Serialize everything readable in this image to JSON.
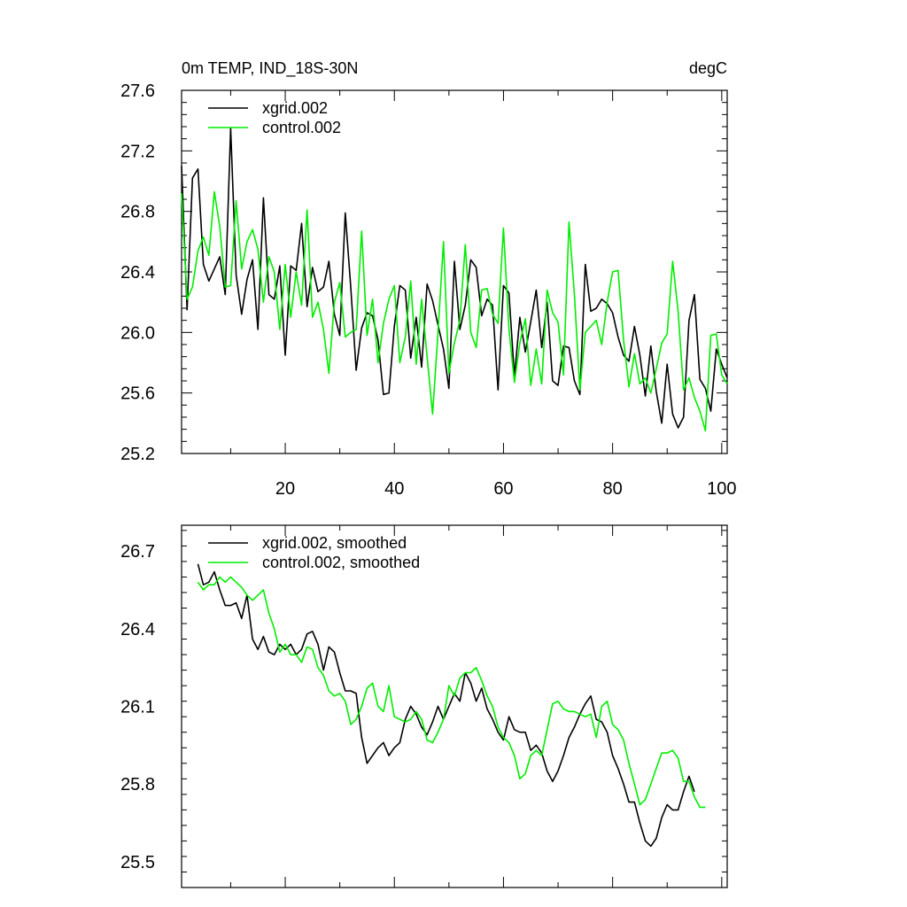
{
  "chart_data": [
    {
      "type": "line",
      "title": "0m TEMP, IND_18S-30N",
      "units": "degC",
      "xlim": [
        1,
        101
      ],
      "ylim": [
        25.2,
        27.6
      ],
      "xticks": [
        20,
        40,
        60,
        80,
        100
      ],
      "yticks": [
        25.2,
        25.6,
        26.0,
        26.4,
        26.8,
        27.2,
        27.6
      ],
      "ytick_labels": [
        "25.2",
        "25.6",
        "26.0",
        "26.4",
        "26.8",
        "27.2",
        "27.6"
      ],
      "legend": "top-left",
      "x_start": 1,
      "series": [
        {
          "name": "xgrid.002",
          "color": "#000000",
          "values": [
            27.1,
            26.15,
            27.02,
            27.08,
            26.45,
            26.34,
            26.42,
            26.5,
            26.25,
            27.35,
            26.38,
            26.12,
            26.35,
            26.48,
            26.02,
            26.89,
            26.25,
            26.22,
            26.44,
            25.85,
            26.44,
            26.41,
            26.72,
            26.17,
            26.43,
            26.27,
            26.3,
            26.47,
            26.12,
            25.98,
            26.79,
            26.3,
            25.75,
            26.03,
            26.13,
            26.11,
            25.95,
            25.59,
            25.6,
            26.04,
            26.31,
            26.28,
            25.83,
            26.1,
            25.77,
            26.32,
            26.21,
            26.05,
            25.89,
            25.63,
            26.47,
            26.02,
            26.18,
            26.48,
            26.43,
            26.11,
            26.22,
            26.18,
            25.62,
            26.31,
            26.26,
            25.71,
            26.1,
            25.87,
            26.07,
            26.28,
            25.9,
            26.2,
            25.68,
            25.65,
            25.91,
            25.9,
            25.68,
            25.59,
            26.45,
            26.14,
            26.16,
            26.22,
            26.19,
            26.13,
            25.97,
            25.85,
            25.81,
            26.04,
            25.85,
            25.58,
            25.91,
            25.61,
            25.4,
            25.79,
            25.46,
            25.37,
            25.44,
            26.08,
            26.25,
            25.69,
            25.63,
            25.48,
            25.89,
            25.79,
            25.7
          ]
        },
        {
          "name": "control.002",
          "color": "#00ee00",
          "values": [
            26.92,
            26.22,
            26.3,
            26.54,
            26.63,
            26.51,
            26.93,
            26.7,
            26.3,
            26.31,
            26.87,
            26.42,
            26.6,
            26.68,
            26.55,
            26.2,
            26.5,
            26.4,
            26.02,
            26.45,
            26.1,
            26.4,
            26.18,
            26.81,
            26.1,
            26.2,
            26.02,
            25.73,
            26.2,
            26.33,
            25.97,
            26.0,
            26.02,
            26.67,
            25.98,
            26.22,
            25.8,
            26.06,
            26.22,
            26.31,
            25.8,
            25.97,
            26.34,
            25.79,
            26.22,
            25.84,
            25.46,
            26.0,
            26.6,
            25.73,
            25.93,
            26.08,
            26.58,
            26.0,
            25.9,
            26.28,
            26.29,
            26.12,
            26.06,
            26.69,
            26.02,
            25.67,
            25.93,
            26.09,
            25.65,
            25.89,
            25.66,
            26.28,
            26.13,
            26.07,
            25.72,
            26.73,
            26.25,
            25.62,
            26.0,
            26.04,
            26.08,
            25.92,
            26.2,
            26.4,
            26.41,
            25.95,
            25.64,
            25.86,
            25.66,
            25.7,
            25.6,
            25.76,
            25.93,
            25.99,
            26.47,
            26.14,
            25.62,
            25.7,
            25.57,
            25.48,
            25.35,
            25.98,
            25.99,
            25.72,
            25.66
          ]
        }
      ]
    },
    {
      "type": "line",
      "title": "",
      "xlim": [
        1,
        101
      ],
      "ylim": [
        25.4,
        26.8
      ],
      "xticks": [
        20,
        40,
        60,
        80,
        100
      ],
      "yticks": [
        25.5,
        25.8,
        26.1,
        26.4,
        26.7
      ],
      "ytick_labels": [
        "25.5",
        "25.8",
        "26.1",
        "26.4",
        "26.7"
      ],
      "legend": "top-left",
      "x_start": 4,
      "series": [
        {
          "name": "xgrid.002, smoothed",
          "color": "#000000",
          "values": [
            26.65,
            26.57,
            26.58,
            26.62,
            26.55,
            26.49,
            26.49,
            26.5,
            26.44,
            26.53,
            26.36,
            26.32,
            26.37,
            26.31,
            26.3,
            26.34,
            26.32,
            26.34,
            26.3,
            26.32,
            26.38,
            26.39,
            26.34,
            26.24,
            26.33,
            26.31,
            26.23,
            26.16,
            26.16,
            26.15,
            25.98,
            25.88,
            25.91,
            25.94,
            25.96,
            25.91,
            25.94,
            25.96,
            26.05,
            26.1,
            26.07,
            26.02,
            25.99,
            26.04,
            26.1,
            26.05,
            26.1,
            26.15,
            26.12,
            26.23,
            26.19,
            26.12,
            26.17,
            26.09,
            26.05,
            26.0,
            25.97,
            26.06,
            26.01,
            26.0,
            26.0,
            25.93,
            25.95,
            25.92,
            25.85,
            25.81,
            25.85,
            25.91,
            25.98,
            26.02,
            26.07,
            26.11,
            26.14,
            26.05,
            26.04,
            26.0,
            25.91,
            25.86,
            25.8,
            25.73,
            25.73,
            25.65,
            25.58,
            25.56,
            25.59,
            25.67,
            25.72,
            25.7,
            25.7,
            25.77,
            25.83,
            25.77
          ]
        },
        {
          "name": "control.002, smoothed",
          "color": "#00ee00",
          "values": [
            26.58,
            26.55,
            26.57,
            26.57,
            26.6,
            26.58,
            26.6,
            26.58,
            26.56,
            26.53,
            26.51,
            26.53,
            26.55,
            26.46,
            26.4,
            26.31,
            26.34,
            26.3,
            26.3,
            26.27,
            26.33,
            26.32,
            26.25,
            26.22,
            26.16,
            26.14,
            26.15,
            26.12,
            26.03,
            26.05,
            26.1,
            26.17,
            26.19,
            26.1,
            26.08,
            26.18,
            26.06,
            26.05,
            26.04,
            26.05,
            26.08,
            26.05,
            25.97,
            25.96,
            26.0,
            26.05,
            26.18,
            26.14,
            26.21,
            26.23,
            26.23,
            26.25,
            26.2,
            26.14,
            26.1,
            26.02,
            25.98,
            25.96,
            25.91,
            25.82,
            25.84,
            25.91,
            25.93,
            25.91,
            26.01,
            26.11,
            26.12,
            26.09,
            26.08,
            26.08,
            26.07,
            26.06,
            26.07,
            25.98,
            26.1,
            26.12,
            26.03,
            26.01,
            25.97,
            25.88,
            25.8,
            25.72,
            25.74,
            25.8,
            25.86,
            25.92,
            25.92,
            25.93,
            25.9,
            25.81,
            25.81,
            25.75,
            25.71,
            25.71
          ]
        }
      ]
    }
  ]
}
